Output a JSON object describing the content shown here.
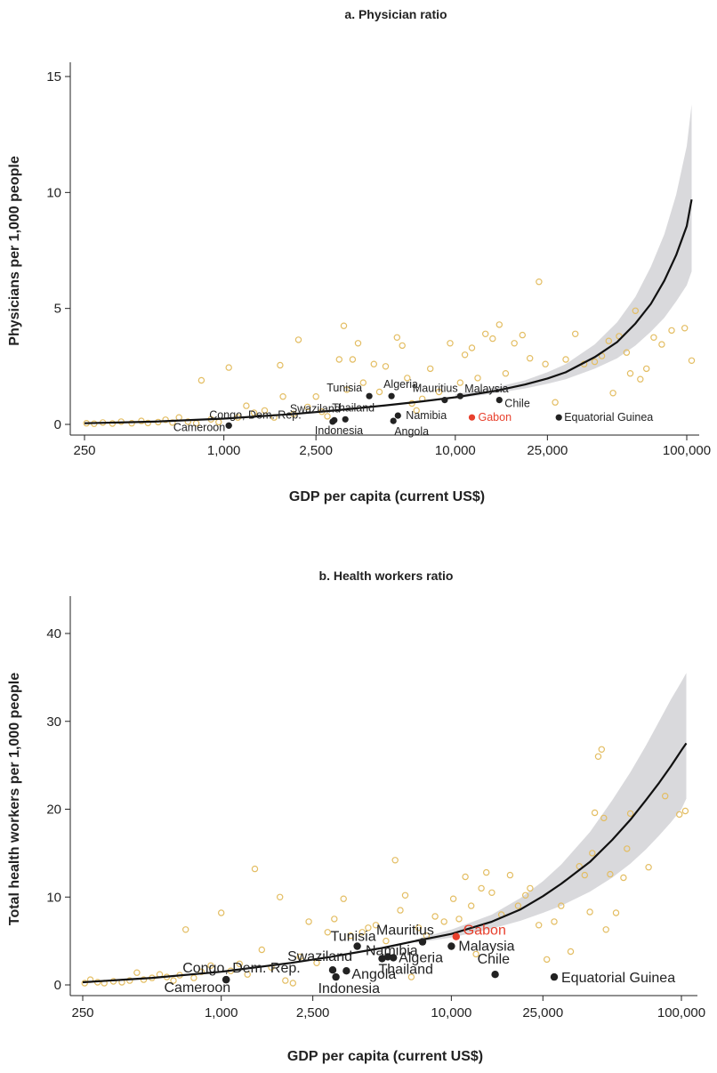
{
  "colors": {
    "scatter": "#e3bd62",
    "highlight_point": "#222222",
    "highlight_label": "#222222",
    "gabon": "#e8402d",
    "band": "#d9d9dc",
    "curve": "#111111"
  },
  "chart_data": [
    {
      "type": "scatter",
      "title": "a. Physician ratio",
      "xlabel": "GDP per capita (current US$)",
      "ylabel": "Physicians per 1,000 people",
      "xscale": "log",
      "xlim": [
        230,
        120000
      ],
      "ylim": [
        -0.4,
        15
      ],
      "xticks": [
        250,
        1000,
        2500,
        10000,
        25000,
        100000
      ],
      "xtick_labels": [
        "250",
        "1,000",
        "2,500",
        "10,000",
        "25,000",
        "100,000"
      ],
      "yticks": [
        0,
        5,
        10,
        15
      ],
      "ytick_labels": [
        "0",
        "5",
        "10",
        "15"
      ],
      "grid": false,
      "fit_curve": {
        "x": [
          250,
          500,
          1000,
          2000,
          3000,
          5000,
          7000,
          10000,
          15000,
          20000,
          25000,
          30000,
          40000,
          50000,
          60000,
          70000,
          80000,
          90000,
          100000,
          105000
        ],
        "y": [
          0.05,
          0.12,
          0.25,
          0.45,
          0.6,
          0.82,
          0.98,
          1.17,
          1.45,
          1.72,
          1.98,
          2.25,
          2.9,
          3.55,
          4.35,
          5.2,
          6.2,
          7.3,
          8.55,
          9.7
        ]
      },
      "confidence_band": {
        "x": [
          10000,
          15000,
          20000,
          25000,
          30000,
          40000,
          50000,
          60000,
          70000,
          80000,
          90000,
          100000,
          105000
        ],
        "lower": [
          1.1,
          1.35,
          1.55,
          1.75,
          1.95,
          2.4,
          2.85,
          3.4,
          4.0,
          4.6,
          5.3,
          6.0,
          6.6
        ],
        "upper": [
          1.3,
          1.6,
          1.9,
          2.25,
          2.6,
          3.45,
          4.4,
          5.5,
          6.8,
          8.2,
          9.9,
          12.0,
          13.8
        ]
      },
      "highlighted": [
        {
          "name": "Algeria",
          "x": 5300,
          "y": 1.22
        },
        {
          "name": "Tunisia",
          "x": 4250,
          "y": 1.22
        },
        {
          "name": "Mauritius",
          "x": 9000,
          "y": 1.05
        },
        {
          "name": "Malaysia",
          "x": 10500,
          "y": 1.22
        },
        {
          "name": "Chile",
          "x": 15500,
          "y": 1.05
        },
        {
          "name": "Swaziland",
          "x": 3000,
          "y": 0.18
        },
        {
          "name": "Thailand",
          "x": 3350,
          "y": 0.22
        },
        {
          "name": "Congo, Dem. Rep.",
          "x": 1050,
          "y": -0.05
        },
        {
          "name": "Cameroon",
          "x": 1050,
          "y": -0.05
        },
        {
          "name": "Indonesia",
          "x": 2950,
          "y": 0.12
        },
        {
          "name": "Namibia",
          "x": 5650,
          "y": 0.38
        },
        {
          "name": "Angola",
          "x": 5400,
          "y": 0.15
        },
        {
          "name": "Gabon",
          "x": 11800,
          "y": 0.3
        },
        {
          "name": "Equatorial Guinea",
          "x": 28000,
          "y": 0.3
        }
      ],
      "scatter": [
        {
          "x": 255,
          "y": 0.05
        },
        {
          "x": 275,
          "y": 0.03
        },
        {
          "x": 300,
          "y": 0.08
        },
        {
          "x": 330,
          "y": 0.04
        },
        {
          "x": 360,
          "y": 0.12
        },
        {
          "x": 400,
          "y": 0.05
        },
        {
          "x": 440,
          "y": 0.15
        },
        {
          "x": 470,
          "y": 0.06
        },
        {
          "x": 520,
          "y": 0.1
        },
        {
          "x": 560,
          "y": 0.2
        },
        {
          "x": 600,
          "y": 0.08
        },
        {
          "x": 640,
          "y": 0.3
        },
        {
          "x": 700,
          "y": 0.12
        },
        {
          "x": 760,
          "y": 0.05
        },
        {
          "x": 800,
          "y": 1.9
        },
        {
          "x": 880,
          "y": 0.22
        },
        {
          "x": 950,
          "y": 0.1
        },
        {
          "x": 1050,
          "y": 2.45
        },
        {
          "x": 1150,
          "y": 0.3
        },
        {
          "x": 1250,
          "y": 0.8
        },
        {
          "x": 1350,
          "y": 0.5
        },
        {
          "x": 1500,
          "y": 0.6
        },
        {
          "x": 1650,
          "y": 0.3
        },
        {
          "x": 1750,
          "y": 2.55
        },
        {
          "x": 1800,
          "y": 1.2
        },
        {
          "x": 2000,
          "y": 0.45
        },
        {
          "x": 2100,
          "y": 3.65
        },
        {
          "x": 2300,
          "y": 0.75
        },
        {
          "x": 2500,
          "y": 1.2
        },
        {
          "x": 2650,
          "y": 0.55
        },
        {
          "x": 2800,
          "y": 0.35
        },
        {
          "x": 3150,
          "y": 2.8
        },
        {
          "x": 3300,
          "y": 4.25
        },
        {
          "x": 3400,
          "y": 1.5
        },
        {
          "x": 3600,
          "y": 2.8
        },
        {
          "x": 3800,
          "y": 3.5
        },
        {
          "x": 4000,
          "y": 1.8
        },
        {
          "x": 4450,
          "y": 2.6
        },
        {
          "x": 4700,
          "y": 1.4
        },
        {
          "x": 5000,
          "y": 2.5
        },
        {
          "x": 5600,
          "y": 3.75
        },
        {
          "x": 5900,
          "y": 3.4
        },
        {
          "x": 6200,
          "y": 2.0
        },
        {
          "x": 6500,
          "y": 0.9
        },
        {
          "x": 6800,
          "y": 0.6
        },
        {
          "x": 7200,
          "y": 1.1
        },
        {
          "x": 7800,
          "y": 2.4
        },
        {
          "x": 8500,
          "y": 1.4
        },
        {
          "x": 9500,
          "y": 3.5
        },
        {
          "x": 10500,
          "y": 1.8
        },
        {
          "x": 11000,
          "y": 3.0
        },
        {
          "x": 11800,
          "y": 3.3
        },
        {
          "x": 12500,
          "y": 2.0
        },
        {
          "x": 13500,
          "y": 3.9
        },
        {
          "x": 14500,
          "y": 3.7
        },
        {
          "x": 15500,
          "y": 4.3
        },
        {
          "x": 16500,
          "y": 2.2
        },
        {
          "x": 18000,
          "y": 3.5
        },
        {
          "x": 19500,
          "y": 3.85
        },
        {
          "x": 21000,
          "y": 2.85
        },
        {
          "x": 23000,
          "y": 6.15
        },
        {
          "x": 24500,
          "y": 2.6
        },
        {
          "x": 27000,
          "y": 0.95
        },
        {
          "x": 30000,
          "y": 2.8
        },
        {
          "x": 33000,
          "y": 3.9
        },
        {
          "x": 36000,
          "y": 2.6
        },
        {
          "x": 40000,
          "y": 2.7
        },
        {
          "x": 43000,
          "y": 2.95
        },
        {
          "x": 46000,
          "y": 3.6
        },
        {
          "x": 48000,
          "y": 1.35
        },
        {
          "x": 51000,
          "y": 3.8
        },
        {
          "x": 55000,
          "y": 3.1
        },
        {
          "x": 57000,
          "y": 2.2
        },
        {
          "x": 60000,
          "y": 4.9
        },
        {
          "x": 63000,
          "y": 1.95
        },
        {
          "x": 67000,
          "y": 2.4
        },
        {
          "x": 72000,
          "y": 3.75
        },
        {
          "x": 78000,
          "y": 3.45
        },
        {
          "x": 86000,
          "y": 4.05
        },
        {
          "x": 98000,
          "y": 4.15
        },
        {
          "x": 105000,
          "y": 2.75
        }
      ]
    },
    {
      "type": "scatter",
      "title": "b. Health workers ratio",
      "xlabel": "GDP per capita (current US$)",
      "ylabel": "Total health workers per 1,000 people",
      "xscale": "log",
      "xlim": [
        230,
        120000
      ],
      "ylim": [
        -1.5,
        44
      ],
      "xticks": [
        250,
        1000,
        2500,
        10000,
        25000,
        100000
      ],
      "xtick_labels": [
        "250",
        "1,000",
        "2,500",
        "10,000",
        "25,000",
        "100,000"
      ],
      "yticks": [
        0,
        10,
        20,
        30,
        40
      ],
      "ytick_labels": [
        "0",
        "10",
        "20",
        "30",
        "40"
      ],
      "grid": false,
      "fit_curve": {
        "x": [
          250,
          500,
          1000,
          2000,
          3000,
          5000,
          7000,
          10000,
          15000,
          20000,
          25000,
          30000,
          40000,
          50000,
          60000,
          70000,
          80000,
          90000,
          100000,
          105000
        ],
        "y": [
          0.3,
          0.8,
          1.5,
          2.5,
          3.2,
          4.2,
          5.0,
          5.8,
          7.2,
          8.6,
          10.1,
          11.5,
          14.0,
          16.5,
          18.8,
          21.0,
          23.0,
          24.9,
          26.7,
          27.5
        ]
      },
      "confidence_band": {
        "x": [
          7000,
          10000,
          15000,
          20000,
          25000,
          30000,
          40000,
          50000,
          60000,
          70000,
          80000,
          90000,
          100000,
          105000
        ],
        "lower": [
          4.8,
          5.4,
          6.4,
          7.3,
          8.2,
          9.0,
          10.6,
          12.2,
          13.8,
          15.4,
          17.0,
          18.5,
          20.0,
          21.2
        ],
        "upper": [
          5.2,
          6.3,
          8.0,
          9.9,
          11.8,
          13.7,
          17.4,
          21.0,
          24.2,
          27.2,
          30.0,
          32.5,
          34.5,
          35.5
        ]
      },
      "highlighted": [
        {
          "name": "Mauritius",
          "x": 7500,
          "y": 4.9
        },
        {
          "name": "Gabon",
          "x": 10500,
          "y": 5.5
        },
        {
          "name": "Tunisia",
          "x": 3900,
          "y": 4.4
        },
        {
          "name": "Namibia",
          "x": 5300,
          "y": 3.2
        },
        {
          "name": "Algeria",
          "x": 5600,
          "y": 3.1
        },
        {
          "name": "Malaysia",
          "x": 10000,
          "y": 4.4
        },
        {
          "name": "Swaziland",
          "x": 3050,
          "y": 1.7
        },
        {
          "name": "Thailand",
          "x": 5000,
          "y": 3.0
        },
        {
          "name": "Congo, Dem. Rep.",
          "x": 1050,
          "y": 0.6
        },
        {
          "name": "Cameroon",
          "x": 1050,
          "y": 0.6
        },
        {
          "name": "Angola",
          "x": 3500,
          "y": 1.6
        },
        {
          "name": "Indonesia",
          "x": 3150,
          "y": 0.9
        },
        {
          "name": "Chile",
          "x": 15500,
          "y": 1.2
        },
        {
          "name": "Equatorial Guinea",
          "x": 28000,
          "y": 0.9
        }
      ],
      "scatter": [
        {
          "x": 255,
          "y": 0.2
        },
        {
          "x": 270,
          "y": 0.6
        },
        {
          "x": 290,
          "y": 0.3
        },
        {
          "x": 310,
          "y": 0.2
        },
        {
          "x": 340,
          "y": 0.4
        },
        {
          "x": 370,
          "y": 0.3
        },
        {
          "x": 400,
          "y": 0.5
        },
        {
          "x": 430,
          "y": 1.4
        },
        {
          "x": 460,
          "y": 0.6
        },
        {
          "x": 500,
          "y": 0.8
        },
        {
          "x": 540,
          "y": 1.2
        },
        {
          "x": 580,
          "y": 0.9
        },
        {
          "x": 620,
          "y": 0.5
        },
        {
          "x": 660,
          "y": 1.1
        },
        {
          "x": 700,
          "y": 6.3
        },
        {
          "x": 760,
          "y": 0.8
        },
        {
          "x": 820,
          "y": 1.5
        },
        {
          "x": 900,
          "y": 2.2
        },
        {
          "x": 1000,
          "y": 8.2
        },
        {
          "x": 1100,
          "y": 1.6
        },
        {
          "x": 1200,
          "y": 2.4
        },
        {
          "x": 1300,
          "y": 1.2
        },
        {
          "x": 1400,
          "y": 13.2
        },
        {
          "x": 1500,
          "y": 4.0
        },
        {
          "x": 1650,
          "y": 2.0
        },
        {
          "x": 1800,
          "y": 10.0
        },
        {
          "x": 1900,
          "y": 0.5
        },
        {
          "x": 2050,
          "y": 0.2
        },
        {
          "x": 2200,
          "y": 3.2
        },
        {
          "x": 2400,
          "y": 7.2
        },
        {
          "x": 2600,
          "y": 2.5
        },
        {
          "x": 2900,
          "y": 6.0
        },
        {
          "x": 3100,
          "y": 7.5
        },
        {
          "x": 3400,
          "y": 9.8
        },
        {
          "x": 3650,
          "y": 5.6
        },
        {
          "x": 4100,
          "y": 6.0
        },
        {
          "x": 4350,
          "y": 6.5
        },
        {
          "x": 4700,
          "y": 6.8
        },
        {
          "x": 5200,
          "y": 5.0
        },
        {
          "x": 5700,
          "y": 14.2
        },
        {
          "x": 6000,
          "y": 8.5
        },
        {
          "x": 6300,
          "y": 10.2
        },
        {
          "x": 6700,
          "y": 0.9
        },
        {
          "x": 7200,
          "y": 6.5
        },
        {
          "x": 7800,
          "y": 5.6
        },
        {
          "x": 8500,
          "y": 7.8
        },
        {
          "x": 9300,
          "y": 7.2
        },
        {
          "x": 10200,
          "y": 9.8
        },
        {
          "x": 10800,
          "y": 7.5
        },
        {
          "x": 11500,
          "y": 12.3
        },
        {
          "x": 12200,
          "y": 9.0
        },
        {
          "x": 12800,
          "y": 3.5
        },
        {
          "x": 13500,
          "y": 11.0
        },
        {
          "x": 14200,
          "y": 12.8
        },
        {
          "x": 15000,
          "y": 10.5
        },
        {
          "x": 16500,
          "y": 8.0
        },
        {
          "x": 18000,
          "y": 12.5
        },
        {
          "x": 19500,
          "y": 9.0
        },
        {
          "x": 21000,
          "y": 10.2
        },
        {
          "x": 22000,
          "y": 11.0
        },
        {
          "x": 24000,
          "y": 6.8
        },
        {
          "x": 26000,
          "y": 2.9
        },
        {
          "x": 28000,
          "y": 7.2
        },
        {
          "x": 30000,
          "y": 9.0
        },
        {
          "x": 33000,
          "y": 3.8
        },
        {
          "x": 36000,
          "y": 13.5
        },
        {
          "x": 38000,
          "y": 12.5
        },
        {
          "x": 40000,
          "y": 8.3
        },
        {
          "x": 41000,
          "y": 15.0
        },
        {
          "x": 42000,
          "y": 19.6
        },
        {
          "x": 43500,
          "y": 26.0
        },
        {
          "x": 45000,
          "y": 26.8
        },
        {
          "x": 46000,
          "y": 19.0
        },
        {
          "x": 47000,
          "y": 6.3
        },
        {
          "x": 49000,
          "y": 12.6
        },
        {
          "x": 52000,
          "y": 8.2
        },
        {
          "x": 56000,
          "y": 12.2
        },
        {
          "x": 58000,
          "y": 15.5
        },
        {
          "x": 60000,
          "y": 19.5
        },
        {
          "x": 72000,
          "y": 13.4
        },
        {
          "x": 85000,
          "y": 21.5
        },
        {
          "x": 98000,
          "y": 19.4
        },
        {
          "x": 104000,
          "y": 19.8
        }
      ]
    }
  ]
}
